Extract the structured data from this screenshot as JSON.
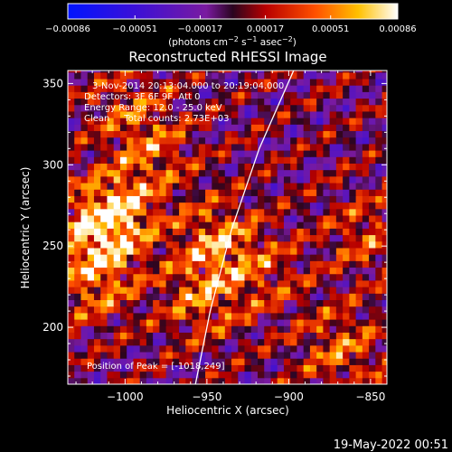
{
  "chart_data": {
    "type": "heatmap",
    "title": "Reconstructed RHESSI Image",
    "xlabel": "Heliocentric X (arcsec)",
    "ylabel": "Heliocentric Y (arcsec)",
    "xlim": [
      -1035,
      -840
    ],
    "ylim": [
      165,
      358
    ],
    "x_ticks": [
      -1000,
      -950,
      -900,
      -850
    ],
    "x_tick_labels": [
      "−1000",
      "−950",
      "−900",
      "−850"
    ],
    "y_ticks": [
      200,
      250,
      300,
      350
    ],
    "y_tick_labels": [
      "200",
      "250",
      "300",
      "350"
    ],
    "colorbar": {
      "range": [
        -0.00086,
        0.00086
      ],
      "colormap": "blue-purple-red-yellow-white",
      "ticks": [
        -0.00086,
        -0.00051,
        -0.00017,
        0.00017,
        0.00051,
        0.00086
      ],
      "tick_labels": [
        "−0.00086",
        "−0.00051",
        "−0.00017",
        "0.00017",
        "0.00051",
        "0.00086"
      ],
      "units_parts": [
        "(photons cm",
        "−2",
        " s",
        "−1",
        " asec",
        "−2",
        ")"
      ]
    },
    "annotations": [
      "3-Nov-2014 20:13:04.000 to 20:19:04.000",
      "Detectors: 3F 6F 9F, Att 0",
      "Energy Range: 12.0 - 25.0 keV",
      "Clean     Total counts: 2.73E+03"
    ],
    "peak_label": "Position of Peak = [-1018,249]",
    "peak": [
      -1018,
      249
    ],
    "limb_curve": [
      [
        -957,
        165
      ],
      [
        -948,
        210
      ],
      [
        -935,
        260
      ],
      [
        -918,
        310
      ],
      [
        -897,
        358
      ]
    ],
    "bright_regions": [
      {
        "x": -1018,
        "y": 258,
        "strength": 1.0
      },
      {
        "x": -1005,
        "y": 270,
        "strength": 0.8
      },
      {
        "x": -1020,
        "y": 225,
        "strength": 0.75
      },
      {
        "x": -945,
        "y": 250,
        "strength": 0.9
      },
      {
        "x": -955,
        "y": 215,
        "strength": 0.7
      },
      {
        "x": -985,
        "y": 305,
        "strength": 0.6
      },
      {
        "x": -1000,
        "y": 335,
        "strength": 0.5
      },
      {
        "x": -870,
        "y": 185,
        "strength": 0.7
      },
      {
        "x": -855,
        "y": 255,
        "strength": 0.55
      },
      {
        "x": -915,
        "y": 230,
        "strength": 0.45
      }
    ]
  },
  "footer": {
    "date": "19-May-2022 00:51"
  }
}
